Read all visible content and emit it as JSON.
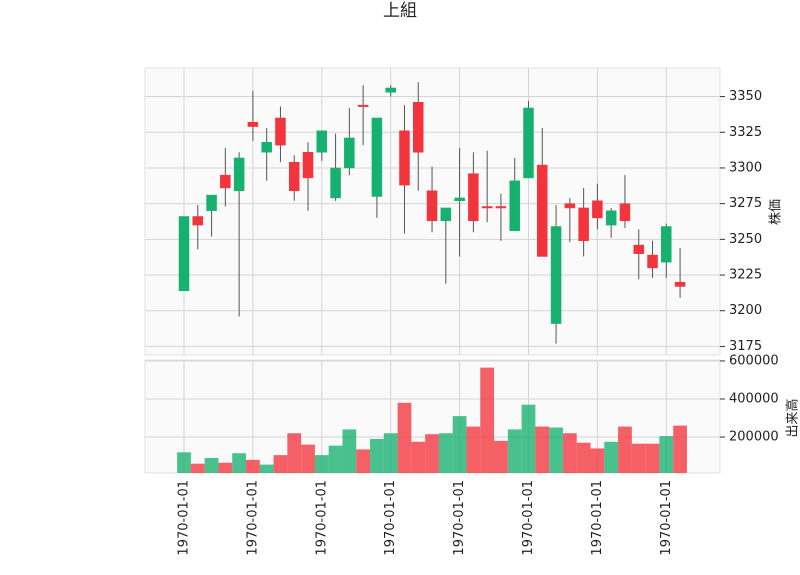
{
  "chart_data": {
    "type": "candlestick",
    "title": "上組",
    "categories": [
      "1970-01-01",
      null,
      null,
      null,
      null,
      "1970-01-01",
      null,
      null,
      null,
      null,
      "1970-01-01",
      null,
      null,
      null,
      null,
      "1970-01-01",
      null,
      null,
      null,
      null,
      "1970-01-01",
      null,
      null,
      null,
      null,
      "1970-01-01",
      null,
      null,
      null,
      null,
      "1970-01-01",
      null,
      null,
      null,
      null,
      "1970-01-01",
      null
    ],
    "open": [
      3214,
      3266,
      3270,
      3295,
      3284,
      3332,
      3311,
      3335,
      3304,
      3311,
      3311,
      3279,
      3300,
      3344,
      3280,
      3353,
      3326,
      3346,
      3284,
      3263,
      3277,
      3296,
      3273,
      3273,
      3256,
      3293,
      3302,
      3191,
      3275,
      3272,
      3277,
      3260,
      3275,
      3246,
      3239,
      3234,
      3220
    ],
    "high": [
      3266,
      3274,
      3281,
      3314,
      3311,
      3354,
      3328,
      3343,
      3309,
      3318,
      3326,
      3324,
      3342,
      3358,
      3335,
      3358,
      3344,
      3360,
      3301,
      3272,
      3314,
      3311,
      3312,
      3282,
      3307,
      3347,
      3328,
      3274,
      3279,
      3286,
      3289,
      3272,
      3295,
      3257,
      3249,
      3261,
      3244
    ],
    "low": [
      3214,
      3243,
      3252,
      3273,
      3196,
      3319,
      3291,
      3304,
      3277,
      3270,
      3305,
      3277,
      3295,
      3316,
      3265,
      3350,
      3254,
      3284,
      3255,
      3219,
      3238,
      3255,
      3262,
      3249,
      3256,
      3293,
      3238,
      3177,
      3248,
      3238,
      3257,
      3251,
      3258,
      3222,
      3223,
      3223,
      3209
    ],
    "close": [
      3266,
      3260,
      3281,
      3286,
      3307,
      3329,
      3318,
      3316,
      3284,
      3293,
      3326,
      3300,
      3321,
      3343,
      3335,
      3356,
      3288,
      3311,
      3263,
      3272,
      3279,
      3263,
      3272,
      3272,
      3291,
      3342,
      3238,
      3259,
      3272,
      3249,
      3265,
      3270,
      3263,
      3240,
      3230,
      3259,
      3217
    ],
    "volume": [
      120000,
      60000,
      90000,
      65000,
      115000,
      80000,
      55000,
      105000,
      220000,
      160000,
      105000,
      155000,
      240000,
      135000,
      190000,
      220000,
      380000,
      175000,
      215000,
      220000,
      310000,
      255000,
      565000,
      180000,
      240000,
      370000,
      255000,
      250000,
      220000,
      170000,
      140000,
      175000,
      255000,
      165000,
      165000,
      205000,
      260000
    ],
    "up_color": "#16b16f",
    "down_color": "#f2343c",
    "ylabel": "株価",
    "ylim": [
      3169,
      3370
    ],
    "yticks": [
      3175,
      3200,
      3225,
      3250,
      3275,
      3300,
      3325,
      3350
    ],
    "y2label": "出来高",
    "y2lim": [
      11000,
      605000
    ],
    "y2ticks": [
      200000,
      400000,
      600000
    ],
    "grid": true
  }
}
